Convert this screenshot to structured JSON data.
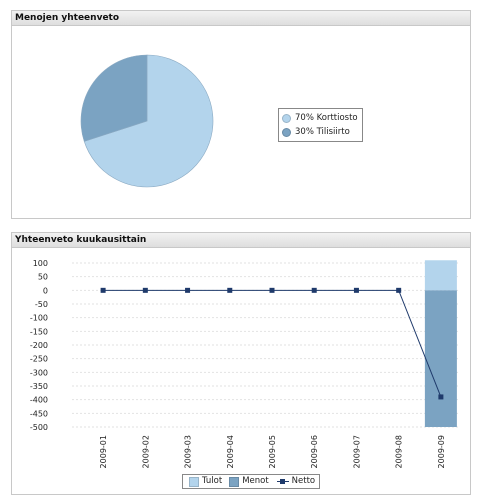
{
  "panels": {
    "pie_title": "Menojen yhteenveto",
    "bar_title": "Yhteenveto kuukausittain"
  },
  "pie_legend": [
    {
      "label": "70% Korttiosto",
      "color": "#b3d4ec"
    },
    {
      "label": "30% Tilisiirto",
      "color": "#7ba3c2"
    }
  ],
  "bar_legend": {
    "tulot": "Tulot",
    "menot": "Menot",
    "netto": "Netto"
  },
  "chart_data": [
    {
      "type": "pie",
      "title": "Menojen yhteenveto",
      "slices": [
        {
          "label": "Korttiosto",
          "percent": 70,
          "color": "#b3d4ec"
        },
        {
          "label": "Tilisiirto",
          "percent": 30,
          "color": "#7ba3c2"
        }
      ]
    },
    {
      "type": "bar",
      "title": "Yhteenveto kuukausittain",
      "categories": [
        "2009-01",
        "2009-02",
        "2009-03",
        "2009-04",
        "2009-05",
        "2009-06",
        "2009-07",
        "2009-08",
        "2009-09"
      ],
      "ylim": [
        -500,
        100
      ],
      "yticks": [
        100,
        50,
        0,
        -50,
        -100,
        -150,
        -200,
        -250,
        -300,
        -350,
        -400,
        -450,
        -500
      ],
      "stacked": true,
      "grid": true,
      "legend_position": "bottom",
      "series": [
        {
          "name": "Tulot",
          "kind": "bar",
          "color": "#b3d4ec",
          "values": [
            0,
            0,
            0,
            0,
            0,
            0,
            0,
            0,
            110
          ]
        },
        {
          "name": "Menot",
          "kind": "bar",
          "color": "#7ba3c2",
          "values": [
            0,
            0,
            0,
            0,
            0,
            0,
            0,
            0,
            -500
          ]
        },
        {
          "name": "Netto",
          "kind": "line",
          "color": "#1f3a6b",
          "values": [
            0,
            0,
            0,
            0,
            0,
            0,
            0,
            0,
            -390
          ]
        }
      ]
    }
  ]
}
